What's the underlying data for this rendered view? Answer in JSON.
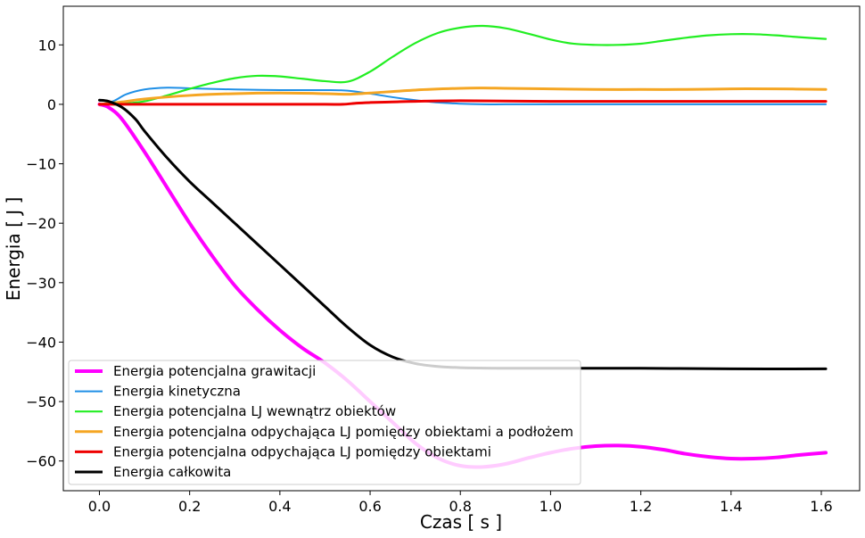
{
  "chart_data": {
    "type": "line",
    "title": "",
    "xlabel": "Czas [ s ]",
    "ylabel": "Energia [ J ]",
    "xlim": [
      -0.08,
      1.685
    ],
    "ylim": [
      -65,
      16.5
    ],
    "xticks": [
      0.0,
      0.2,
      0.4,
      0.6,
      0.8,
      1.0,
      1.2,
      1.4,
      1.6
    ],
    "xtick_labels": [
      "0.0",
      "0.2",
      "0.4",
      "0.6",
      "0.8",
      "1.0",
      "1.2",
      "1.4",
      "1.6"
    ],
    "yticks": [
      10,
      0,
      -10,
      -20,
      -30,
      -40,
      -50,
      -60
    ],
    "ytick_labels": [
      "10",
      "0",
      "−10",
      "−20",
      "−30",
      "−40",
      "−50",
      "−60"
    ],
    "grid": false,
    "legend_position": "lower-left",
    "series": [
      {
        "name": "Energia potencjalna grawitacji",
        "color": "#ff00ff",
        "width": 4,
        "x": [
          0,
          0.02,
          0.05,
          0.1,
          0.15,
          0.2,
          0.25,
          0.3,
          0.35,
          0.4,
          0.45,
          0.5,
          0.55,
          0.6,
          0.65,
          0.7,
          0.75,
          0.8,
          0.85,
          0.9,
          0.95,
          1.0,
          1.05,
          1.1,
          1.15,
          1.2,
          1.25,
          1.3,
          1.35,
          1.4,
          1.45,
          1.5,
          1.55,
          1.61
        ],
        "y": [
          0,
          -0.5,
          -2.5,
          -8,
          -14,
          -20,
          -25.5,
          -30.5,
          -34.5,
          -38,
          -41,
          -43.5,
          -46.5,
          -50,
          -53.5,
          -57,
          -59.5,
          -60.8,
          -61,
          -60.5,
          -59.5,
          -58.6,
          -57.9,
          -57.5,
          -57.4,
          -57.6,
          -58.1,
          -58.8,
          -59.3,
          -59.6,
          -59.6,
          -59.4,
          -59,
          -58.6
        ]
      },
      {
        "name": "Energia kinetyczna",
        "color": "#1f8fe6",
        "width": 2,
        "x": [
          0,
          0.03,
          0.06,
          0.1,
          0.15,
          0.2,
          0.3,
          0.4,
          0.5,
          0.55,
          0.6,
          0.65,
          0.7,
          0.75,
          0.8,
          0.85,
          0.9,
          1.0,
          1.1,
          1.2,
          1.3,
          1.4,
          1.5,
          1.61
        ],
        "y": [
          0,
          0.5,
          1.7,
          2.5,
          2.8,
          2.7,
          2.5,
          2.4,
          2.4,
          2.3,
          1.8,
          1.2,
          0.7,
          0.3,
          0.1,
          0,
          0,
          0,
          0,
          0,
          0,
          0,
          0,
          0
        ]
      },
      {
        "name": "Energia potencjalna LJ wewnątrz obiektów",
        "color": "#22ee22",
        "width": 2.2,
        "x": [
          0,
          0.05,
          0.1,
          0.15,
          0.2,
          0.25,
          0.3,
          0.35,
          0.4,
          0.45,
          0.5,
          0.55,
          0.6,
          0.65,
          0.7,
          0.75,
          0.8,
          0.85,
          0.9,
          0.95,
          1.0,
          1.05,
          1.1,
          1.15,
          1.2,
          1.25,
          1.3,
          1.35,
          1.4,
          1.45,
          1.5,
          1.55,
          1.61
        ],
        "y": [
          0,
          0.1,
          0.5,
          1.5,
          2.6,
          3.6,
          4.4,
          4.8,
          4.7,
          4.3,
          3.9,
          3.8,
          5.5,
          8,
          10.3,
          12,
          12.9,
          13.2,
          12.8,
          11.9,
          10.9,
          10.2,
          10,
          10,
          10.2,
          10.7,
          11.2,
          11.6,
          11.8,
          11.8,
          11.6,
          11.3,
          11
        ]
      },
      {
        "name": "Energia potencjalna odpychająca LJ pomiędzy obiektami a podłożem",
        "color": "#f5a623",
        "width": 3,
        "x": [
          0,
          0.05,
          0.1,
          0.2,
          0.3,
          0.4,
          0.5,
          0.55,
          0.6,
          0.7,
          0.8,
          0.85,
          0.9,
          1.0,
          1.1,
          1.2,
          1.3,
          1.4,
          1.5,
          1.61
        ],
        "y": [
          0,
          0.4,
          0.9,
          1.5,
          1.8,
          1.9,
          1.8,
          1.7,
          1.9,
          2.4,
          2.7,
          2.75,
          2.7,
          2.6,
          2.5,
          2.5,
          2.5,
          2.6,
          2.6,
          2.5
        ]
      },
      {
        "name": "Energia potencjalna odpychająca LJ pomiędzy obiektami",
        "color": "#ee0000",
        "width": 3,
        "x": [
          0,
          0.1,
          0.2,
          0.3,
          0.4,
          0.5,
          0.54,
          0.57,
          0.6,
          0.65,
          0.7,
          0.8,
          1.0,
          1.2,
          1.4,
          1.61
        ],
        "y": [
          0,
          0,
          0,
          0,
          0,
          0,
          0,
          0.2,
          0.3,
          0.4,
          0.5,
          0.6,
          0.5,
          0.5,
          0.5,
          0.5
        ]
      },
      {
        "name": "Energia całkowita",
        "color": "#000000",
        "width": 3,
        "x": [
          0,
          0.02,
          0.05,
          0.08,
          0.1,
          0.15,
          0.2,
          0.25,
          0.3,
          0.35,
          0.4,
          0.45,
          0.5,
          0.55,
          0.6,
          0.65,
          0.7,
          0.75,
          0.8,
          0.9,
          1.0,
          1.2,
          1.4,
          1.61
        ],
        "y": [
          0.7,
          0.5,
          -0.5,
          -2.5,
          -4.5,
          -9,
          -13,
          -16.5,
          -20,
          -23.5,
          -27,
          -30.5,
          -34,
          -37.5,
          -40.5,
          -42.5,
          -43.6,
          -44.1,
          -44.3,
          -44.4,
          -44.4,
          -44.4,
          -44.5,
          -44.5
        ]
      }
    ]
  }
}
